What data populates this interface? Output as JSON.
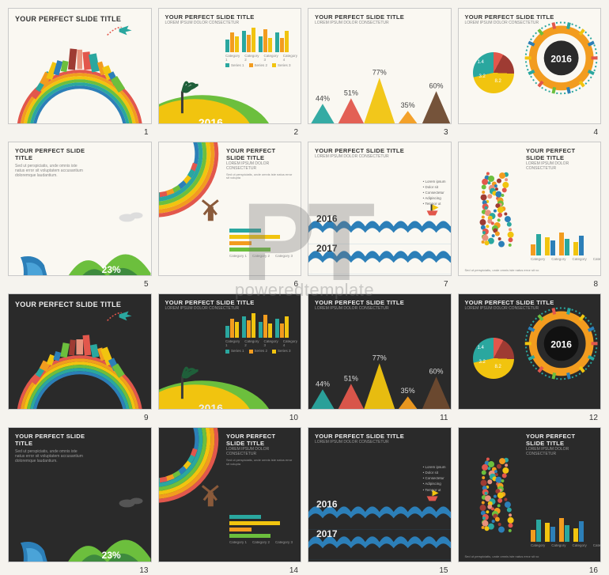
{
  "watermark": {
    "big": "PT",
    "small": "poweredtemplate"
  },
  "common": {
    "title": "YOUR PERFECT SLIDE TITLE",
    "lorem_short": "LOREM IPSUM DOLOR CONSECTETUR",
    "lorem_body": "Sed ut perspiciatis, unde omnis iste natus error sit voluptatem accusantium doloremque laudantium.",
    "category_labels": [
      "Category 1",
      "Category 2",
      "Category 3",
      "Category 4"
    ],
    "series_labels": [
      "Series 1",
      "Series 2",
      "Series 3"
    ]
  },
  "palette": {
    "teal": "#2aa79f",
    "blue": "#2c7fb8",
    "red": "#e2574c",
    "orange": "#f29c1f",
    "yellow": "#f1c40f",
    "green": "#6cbf3d",
    "dark_green": "#3e8a3e",
    "brown": "#6e4a2f",
    "maroon": "#9e3b33",
    "gray": "#888888",
    "black": "#2a2a2a",
    "white": "#ffffff",
    "cream": "#faf8f2",
    "pink": "#e8927c"
  },
  "slides": [
    {
      "n": 1,
      "variant": "light",
      "type": "city_arc",
      "title": "YOUR PERFECT SLIDE TITLE"
    },
    {
      "n": 2,
      "variant": "light",
      "type": "island_bars",
      "year": "2016",
      "bars": [
        [
          0.35,
          0.55,
          0.45
        ],
        [
          0.6,
          0.5,
          0.7
        ],
        [
          0.45,
          0.65,
          0.4
        ],
        [
          0.55,
          0.4,
          0.6
        ]
      ],
      "bar_colors": [
        "#2aa79f",
        "#f29c1f",
        "#f1c40f"
      ]
    },
    {
      "n": 3,
      "variant": "light",
      "type": "mountains",
      "peaks": [
        {
          "v": 44,
          "c": "#2aa79f"
        },
        {
          "v": 51,
          "c": "#e2574c"
        },
        {
          "v": 77,
          "c": "#f1c40f"
        },
        {
          "v": 35,
          "c": "#f29c1f"
        },
        {
          "v": 60,
          "c": "#6e4a2f"
        }
      ]
    },
    {
      "n": 4,
      "variant": "light",
      "type": "pie_globe",
      "year": "2016",
      "pie": [
        {
          "v": 1.4,
          "c": "#e2574c"
        },
        {
          "v": 3.2,
          "c": "#9e3b33"
        },
        {
          "v": 8.2,
          "c": "#f1c40f"
        },
        {
          "v": 5.1,
          "c": "#2aa79f"
        }
      ]
    },
    {
      "n": 5,
      "variant": "light",
      "type": "waterfall",
      "pct": "23%"
    },
    {
      "n": 6,
      "variant": "light",
      "type": "circle_hbars",
      "hbars": [
        {
          "v": 0.5,
          "c": "#2aa79f"
        },
        {
          "v": 0.8,
          "c": "#f1c40f"
        },
        {
          "v": 0.35,
          "c": "#f29c1f"
        },
        {
          "v": 0.65,
          "c": "#6cbf3d"
        }
      ]
    },
    {
      "n": 7,
      "variant": "light",
      "type": "waves",
      "year1": "2016",
      "year2": "2017",
      "bullets": [
        "Lorem ipsum",
        "Dolor sit",
        "Consectetur",
        "Adipiscing",
        "Tempor ut"
      ]
    },
    {
      "n": 8,
      "variant": "light",
      "type": "south_america_bars",
      "bars2": [
        [
          0.35,
          0.65
        ],
        [
          0.55,
          0.45
        ],
        [
          0.7,
          0.5
        ],
        [
          0.4,
          0.6
        ]
      ],
      "bar_colors2": [
        "#f29c1f",
        "#2aa79f",
        "#f1c40f",
        "#2c7fb8"
      ]
    },
    {
      "n": 9,
      "variant": "dark",
      "type": "city_arc",
      "title": "YOUR PERFECT SLIDE TITLE"
    },
    {
      "n": 10,
      "variant": "dark",
      "type": "island_bars",
      "year": "2016",
      "bars": [
        [
          0.35,
          0.55,
          0.45
        ],
        [
          0.6,
          0.5,
          0.7
        ],
        [
          0.45,
          0.65,
          0.4
        ],
        [
          0.55,
          0.4,
          0.6
        ]
      ],
      "bar_colors": [
        "#2aa79f",
        "#f29c1f",
        "#f1c40f"
      ]
    },
    {
      "n": 11,
      "variant": "dark",
      "type": "mountains",
      "peaks": [
        {
          "v": 44,
          "c": "#2aa79f"
        },
        {
          "v": 51,
          "c": "#e2574c"
        },
        {
          "v": 77,
          "c": "#f1c40f"
        },
        {
          "v": 35,
          "c": "#f29c1f"
        },
        {
          "v": 60,
          "c": "#6e4a2f"
        }
      ]
    },
    {
      "n": 12,
      "variant": "dark",
      "type": "pie_globe",
      "year": "2016",
      "pie": [
        {
          "v": 1.4,
          "c": "#e2574c"
        },
        {
          "v": 3.2,
          "c": "#9e3b33"
        },
        {
          "v": 8.2,
          "c": "#f1c40f"
        },
        {
          "v": 5.1,
          "c": "#2aa79f"
        }
      ]
    },
    {
      "n": 13,
      "variant": "dark",
      "type": "waterfall",
      "pct": "23%"
    },
    {
      "n": 14,
      "variant": "dark",
      "type": "circle_hbars",
      "hbars": [
        {
          "v": 0.5,
          "c": "#2aa79f"
        },
        {
          "v": 0.8,
          "c": "#f1c40f"
        },
        {
          "v": 0.35,
          "c": "#f29c1f"
        },
        {
          "v": 0.65,
          "c": "#6cbf3d"
        }
      ]
    },
    {
      "n": 15,
      "variant": "dark",
      "type": "waves",
      "year1": "2016",
      "year2": "2017",
      "bullets": [
        "Lorem ipsum",
        "Dolor sit",
        "Consectetur",
        "Adipiscing",
        "Tempor ut"
      ]
    },
    {
      "n": 16,
      "variant": "dark",
      "type": "south_america_bars",
      "bars2": [
        [
          0.35,
          0.65
        ],
        [
          0.55,
          0.45
        ],
        [
          0.7,
          0.5
        ],
        [
          0.4,
          0.6
        ]
      ],
      "bar_colors2": [
        "#f29c1f",
        "#2aa79f",
        "#f1c40f",
        "#2c7fb8"
      ]
    }
  ]
}
